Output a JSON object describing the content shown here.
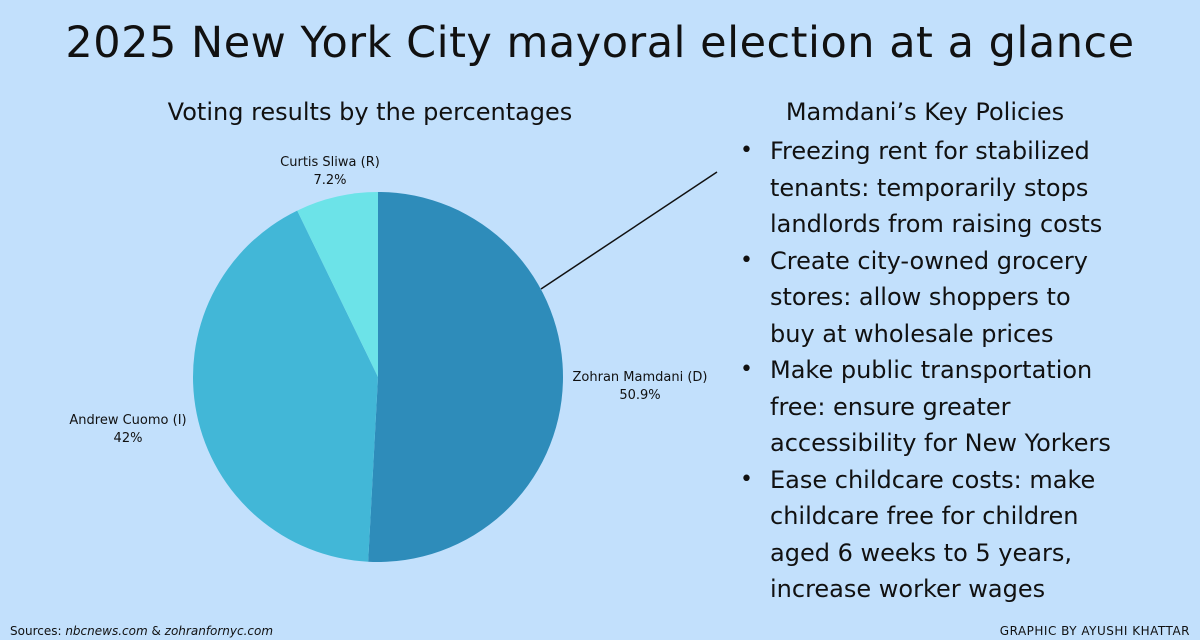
{
  "title": "2025 New York City mayoral election at a glance",
  "chart_data": {
    "type": "pie",
    "title": "Voting results by the percentages",
    "series": [
      {
        "name": "Zohran Mamdani (D)",
        "label": "50.9%",
        "value": 50.9,
        "color": "#2e8cba"
      },
      {
        "name": "Andrew Cuomo (I)",
        "label": "42%",
        "value": 42,
        "color": "#42b7d7"
      },
      {
        "name": "Curtis Sliwa (R)",
        "label": "7.2%",
        "value": 7.2,
        "color": "#6ce3e8"
      }
    ]
  },
  "policies": {
    "heading": "Mamdani’s Key Policies",
    "items": [
      "Freezing rent for stabilized tenants: temporarily stops landlords from raising costs",
      "Create city-owned grocery stores: allow shoppers to buy at wholesale prices",
      "Make public transportation free: ensure greater accessibility for New Yorkers",
      "Ease childcare costs: make childcare free for children aged 6 weeks to 5 years, increase worker wages"
    ]
  },
  "footer": {
    "sources_prefix": "Sources: ",
    "source_1": "nbcnews.com",
    "source_sep": " & ",
    "source_2": "zohranfornyc.com",
    "credit": "GRAPHIC BY AYUSHI KHATTAR"
  }
}
